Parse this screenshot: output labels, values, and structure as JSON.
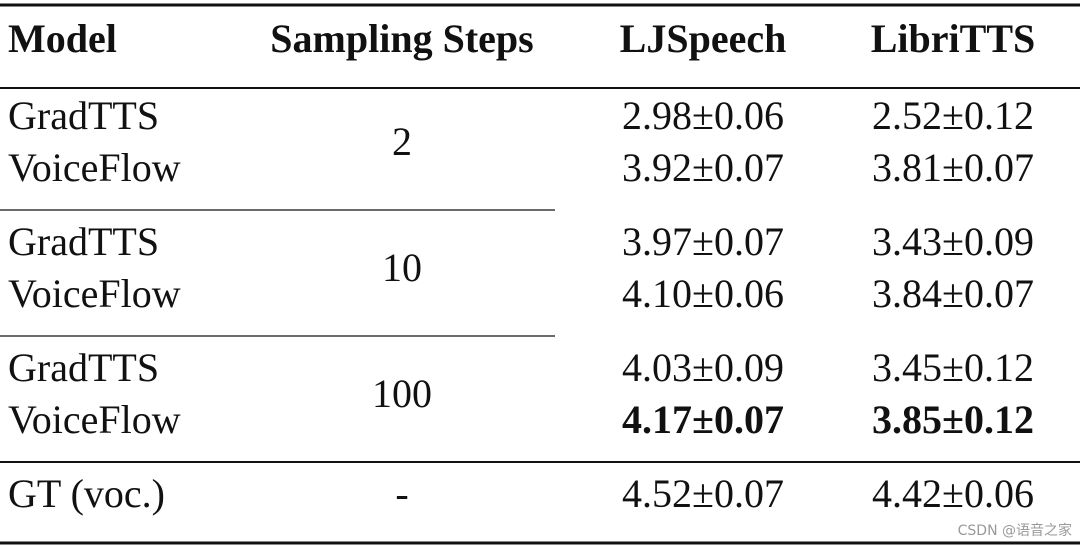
{
  "table": {
    "header": [
      "Model",
      "Sampling Steps",
      "LJSpeech",
      "LibriTTS"
    ],
    "groups": [
      {
        "steps": "2",
        "rows": [
          {
            "model": "GradTTS",
            "ljspeech": "2.98±0.06",
            "libritts": "2.52±0.12"
          },
          {
            "model": "VoiceFlow",
            "ljspeech": "3.92±0.07",
            "libritts": "3.81±0.07"
          }
        ]
      },
      {
        "steps": "10",
        "rows": [
          {
            "model": "GradTTS",
            "ljspeech": "3.97±0.07",
            "libritts": "3.43±0.09"
          },
          {
            "model": "VoiceFlow",
            "ljspeech": "4.10±0.06",
            "libritts": "3.84±0.07"
          }
        ]
      },
      {
        "steps": "100",
        "rows": [
          {
            "model": "GradTTS",
            "ljspeech": "4.03±0.09",
            "libritts": "3.45±0.12"
          },
          {
            "model": "VoiceFlow",
            "ljspeech": "4.17±0.07",
            "libritts": "3.85±0.12",
            "bold": true
          }
        ]
      },
      {
        "steps": "-",
        "rows": [
          {
            "model": "GT (voc.)",
            "ljspeech": "4.52±0.07",
            "libritts": "4.42±0.06"
          }
        ]
      }
    ]
  },
  "watermark": "CSDN @语音之家"
}
